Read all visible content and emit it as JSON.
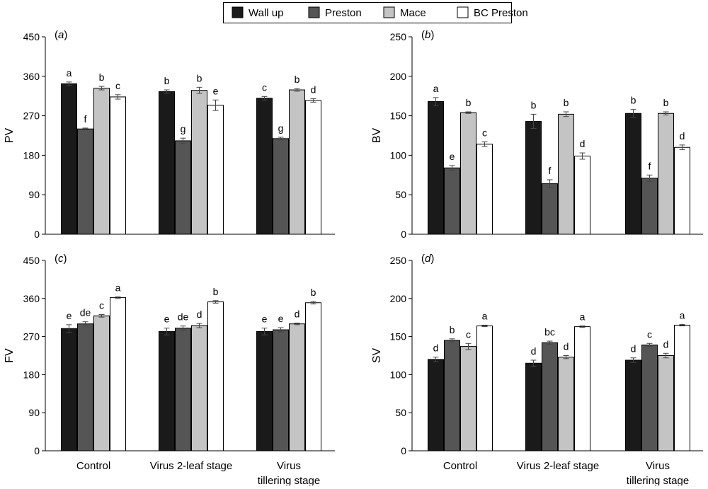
{
  "legend": {
    "items": [
      {
        "label": "Wall up",
        "color": "#1a1a1a"
      },
      {
        "label": "Preston",
        "color": "#555555"
      },
      {
        "label": "Mace",
        "color": "#c4c4c4"
      },
      {
        "label": "BC Preston",
        "color": "#ffffff"
      }
    ]
  },
  "chart_data": [
    {
      "type": "bar",
      "panel_label": "(a)",
      "ylabel": "PV",
      "ylim": [
        0,
        450
      ],
      "yticks": [
        0,
        90,
        180,
        270,
        360,
        450
      ],
      "categories": [
        "Control",
        "Virus 2-leaf stage",
        "Virus tillering stage"
      ],
      "series": [
        {
          "name": "Wall up",
          "values": [
            343,
            325,
            310
          ],
          "errors": [
            4,
            4,
            4
          ],
          "letters": [
            "a",
            "b",
            "c"
          ]
        },
        {
          "name": "Preston",
          "values": [
            240,
            213,
            218
          ],
          "errors": [
            2,
            6,
            3
          ],
          "letters": [
            "f",
            "g",
            "g"
          ]
        },
        {
          "name": "Mace",
          "values": [
            333,
            328,
            329
          ],
          "errors": [
            4,
            7,
            3
          ],
          "letters": [
            "b",
            "b",
            "b"
          ]
        },
        {
          "name": "BC Preston",
          "values": [
            313,
            294,
            305
          ],
          "errors": [
            5,
            12,
            4
          ],
          "letters": [
            "c",
            "e",
            "d"
          ]
        }
      ]
    },
    {
      "type": "bar",
      "panel_label": "(b)",
      "ylabel": "BV",
      "ylim": [
        0,
        250
      ],
      "yticks": [
        0,
        50,
        100,
        150,
        200,
        250
      ],
      "categories": [
        "Control",
        "Virus 2-leaf stage",
        "Virus tillering stage"
      ],
      "series": [
        {
          "name": "Wall up",
          "values": [
            168,
            143,
            153
          ],
          "errors": [
            5,
            9,
            5
          ],
          "letters": [
            "a",
            "b",
            "b"
          ]
        },
        {
          "name": "Preston",
          "values": [
            84,
            64,
            71
          ],
          "errors": [
            3,
            5,
            4
          ],
          "letters": [
            "e",
            "f",
            "f"
          ]
        },
        {
          "name": "Mace",
          "values": [
            154,
            152,
            153
          ],
          "errors": [
            1,
            3,
            2
          ],
          "letters": [
            "b",
            "b",
            "b"
          ]
        },
        {
          "name": "BC Preston",
          "values": [
            114,
            99,
            110
          ],
          "errors": [
            3,
            4,
            3
          ],
          "letters": [
            "c",
            "d",
            "d"
          ]
        }
      ]
    },
    {
      "type": "bar",
      "panel_label": "(c)",
      "ylabel": "FV",
      "ylim": [
        0,
        450
      ],
      "yticks": [
        0,
        90,
        180,
        270,
        360,
        450
      ],
      "categories": [
        "Control",
        "Virus 2-leaf stage",
        "Virus tillering stage"
      ],
      "series": [
        {
          "name": "Wall up",
          "values": [
            289,
            282,
            282
          ],
          "errors": [
            9,
            8,
            8
          ],
          "letters": [
            "e",
            "e",
            "e"
          ]
        },
        {
          "name": "Preston",
          "values": [
            300,
            290,
            286
          ],
          "errors": [
            5,
            5,
            5
          ],
          "letters": [
            "de",
            "de",
            "e"
          ]
        },
        {
          "name": "Mace",
          "values": [
            319,
            296,
            300
          ],
          "errors": [
            3,
            5,
            2
          ],
          "letters": [
            "c",
            "d",
            "d"
          ]
        },
        {
          "name": "BC Preston",
          "values": [
            362,
            352,
            350
          ],
          "errors": [
            2,
            3,
            3
          ],
          "letters": [
            "a",
            "b",
            "b"
          ]
        }
      ]
    },
    {
      "type": "bar",
      "panel_label": "(d)",
      "ylabel": "SV",
      "ylim": [
        0,
        250
      ],
      "yticks": [
        0,
        50,
        100,
        150,
        200,
        250
      ],
      "categories": [
        "Control",
        "Virus 2-leaf stage",
        "Virus tillering stage"
      ],
      "series": [
        {
          "name": "Wall up",
          "values": [
            120,
            115,
            119
          ],
          "errors": [
            3,
            4,
            3
          ],
          "letters": [
            "d",
            "d",
            "d"
          ]
        },
        {
          "name": "Preston",
          "values": [
            145,
            142,
            139
          ],
          "errors": [
            2,
            2,
            2
          ],
          "letters": [
            "b",
            "bc",
            "c"
          ]
        },
        {
          "name": "Mace",
          "values": [
            137,
            123,
            125
          ],
          "errors": [
            4,
            2,
            3
          ],
          "letters": [
            "c",
            "d",
            "d"
          ]
        },
        {
          "name": "BC Preston",
          "values": [
            164,
            163,
            165
          ],
          "errors": [
            1,
            1,
            1
          ],
          "letters": [
            "a",
            "a",
            "a"
          ]
        }
      ]
    }
  ],
  "category_labels": [
    {
      "lines": [
        "Control"
      ]
    },
    {
      "lines": [
        "Virus 2-leaf stage"
      ]
    },
    {
      "lines": [
        "Virus",
        "tillering stage"
      ]
    }
  ]
}
